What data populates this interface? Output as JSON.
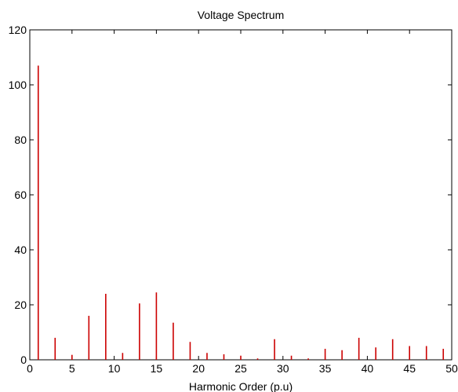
{
  "chart_data": {
    "type": "bar",
    "title": "Voltage Spectrum",
    "xlabel": "Harmonic Order (p.u)",
    "ylabel": "",
    "xlim": [
      0,
      50
    ],
    "ylim": [
      0,
      120
    ],
    "x_ticks": [
      0,
      5,
      10,
      15,
      20,
      25,
      30,
      35,
      40,
      45,
      50
    ],
    "y_ticks": [
      0,
      20,
      40,
      60,
      80,
      100,
      120
    ],
    "grid": false,
    "bar_color": "#cc0000",
    "axis_color": "#000000",
    "series": [
      {
        "x": [
          1,
          3,
          5,
          7,
          9,
          11,
          13,
          15,
          17,
          19,
          21,
          23,
          25,
          27,
          29,
          31,
          33,
          35,
          37,
          39,
          41,
          43,
          45,
          47,
          49
        ],
        "values": [
          107,
          8,
          1.8,
          16,
          24,
          2.5,
          20.5,
          24.5,
          13.5,
          6.5,
          2.5,
          2,
          1.5,
          0.5,
          7.5,
          1.5,
          0.5,
          4,
          3.5,
          8,
          4.5,
          7.5,
          5,
          5,
          4
        ]
      }
    ]
  }
}
